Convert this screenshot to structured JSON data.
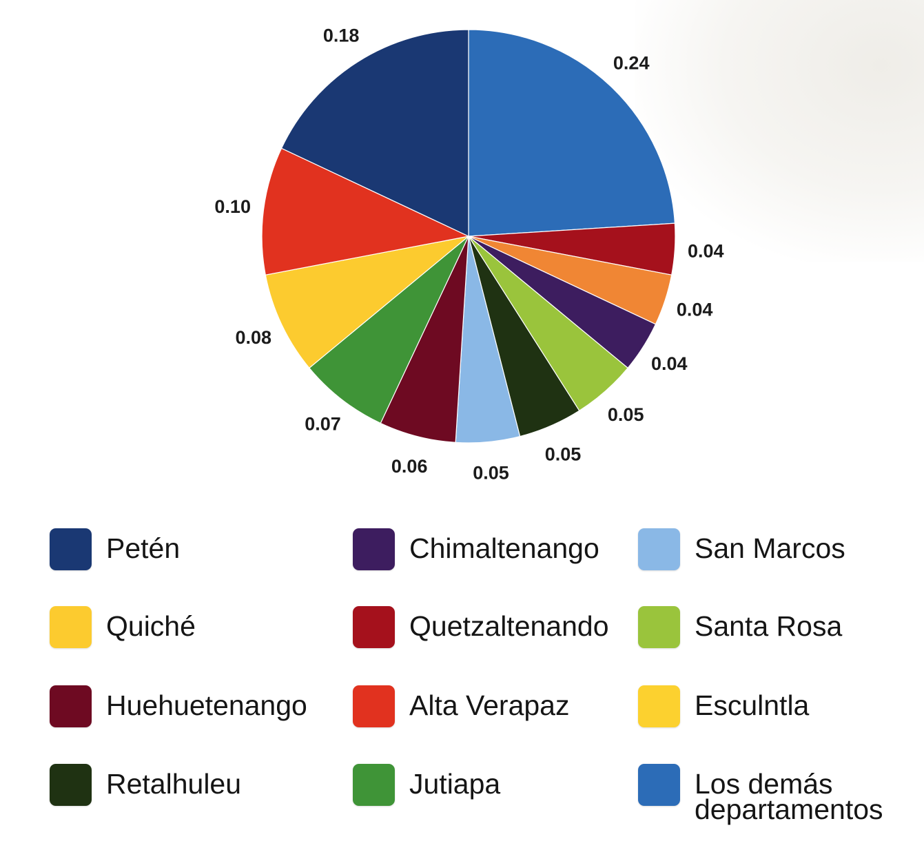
{
  "chart_data": {
    "type": "pie",
    "title": "",
    "slices": [
      {
        "label": "0.24",
        "value": 0.24,
        "color": "#2c6cb7",
        "legend": "Los demás departamentos"
      },
      {
        "label": "0.04",
        "value": 0.04,
        "color": "#a5111c",
        "legend": "Quetzaltenando"
      },
      {
        "label": "0.04",
        "value": 0.04,
        "color": "#f08634",
        "legend": ""
      },
      {
        "label": "0.04",
        "value": 0.04,
        "color": "#3d1d5f",
        "legend": "Chimaltenango"
      },
      {
        "label": "0.05",
        "value": 0.05,
        "color": "#9ac43c",
        "legend": "Santa Rosa"
      },
      {
        "label": "0.05",
        "value": 0.05,
        "color": "#1f3212",
        "legend": "Retalhuleu"
      },
      {
        "label": "0.05",
        "value": 0.05,
        "color": "#8ab8e6",
        "legend": "San Marcos"
      },
      {
        "label": "0.06",
        "value": 0.06,
        "color": "#6e0a22",
        "legend": "Huehuetenango"
      },
      {
        "label": "0.07",
        "value": 0.07,
        "color": "#3f9437",
        "legend": "Jutiapa"
      },
      {
        "label": "0.08",
        "value": 0.08,
        "color": "#fccb2f",
        "legend": "Quiché"
      },
      {
        "label": "0.10",
        "value": 0.1,
        "color": "#e1321f",
        "legend": "Alta Verapaz"
      },
      {
        "label": "0.18",
        "value": 0.18,
        "color": "#1a3873",
        "legend": "Petén"
      }
    ],
    "legend": [
      {
        "name": "Petén",
        "color": "#1a3873"
      },
      {
        "name": "Chimaltenango",
        "color": "#3d1d5f"
      },
      {
        "name": "San Marcos",
        "color": "#8ab8e6"
      },
      {
        "name": "Quiché",
        "color": "#fccb2f"
      },
      {
        "name": "Quetzaltenando",
        "color": "#a5111c"
      },
      {
        "name": "Santa Rosa",
        "color": "#9ac43c"
      },
      {
        "name": "Huehuetenango",
        "color": "#6e0a22"
      },
      {
        "name": "Alta Verapaz",
        "color": "#e1321f"
      },
      {
        "name": "Esculntla",
        "color": "#fcd12f"
      },
      {
        "name": "Retalhuleu",
        "color": "#1f3212"
      },
      {
        "name": "Jutiapa",
        "color": "#3f9437"
      },
      {
        "name": "Los demás departamentos",
        "color": "#2c6cb7"
      }
    ],
    "legend_columns": 3,
    "legend_placement": "bottom"
  }
}
